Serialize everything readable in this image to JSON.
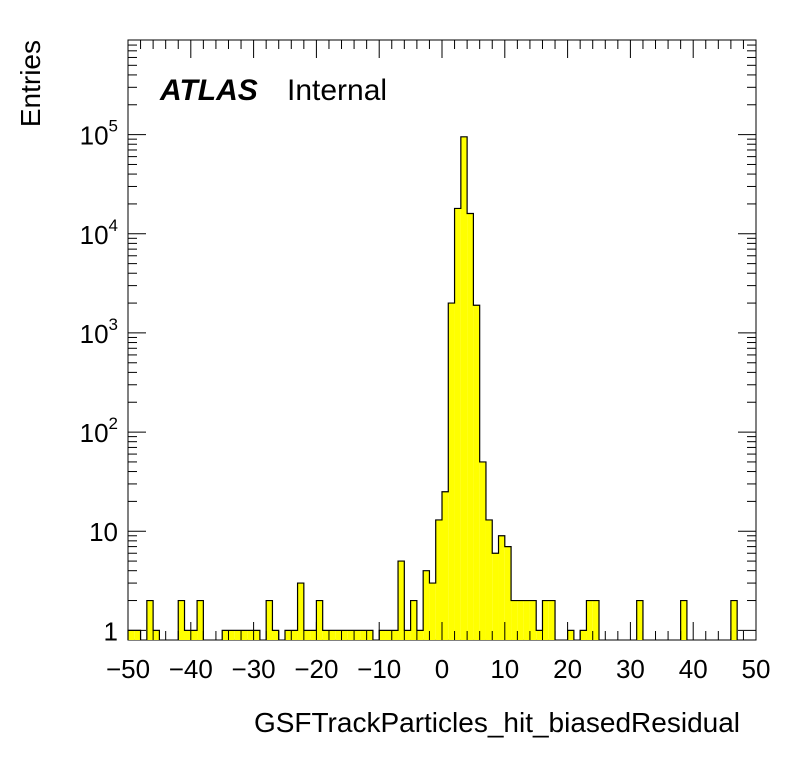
{
  "chart_data": {
    "type": "bar",
    "histogram": true,
    "title": "",
    "label": {
      "experiment": "ATLAS",
      "status": "Internal"
    },
    "xlabel": "GSFTrackParticles_hit_biasedResidual",
    "ylabel": "Entries",
    "xlim": [
      -50,
      50
    ],
    "ylim": [
      0.8,
      900000
    ],
    "yscale": "log",
    "bin_width": 1,
    "fill_color": "#ffff00",
    "line_color": "#000000",
    "x_tick_labels": [
      "−50",
      "−40",
      "−30",
      "−20",
      "−10",
      "0",
      "10",
      "20",
      "30",
      "40",
      "50"
    ],
    "x_ticks": [
      -50,
      -40,
      -30,
      -20,
      -10,
      0,
      10,
      20,
      30,
      40,
      50
    ],
    "y_ticks": [
      {
        "value": 1,
        "base": "1",
        "exp": ""
      },
      {
        "value": 10,
        "base": "10",
        "exp": ""
      },
      {
        "value": 100,
        "base": "10",
        "exp": "2"
      },
      {
        "value": 1000,
        "base": "10",
        "exp": "3"
      },
      {
        "value": 10000,
        "base": "10",
        "exp": "4"
      },
      {
        "value": 100000,
        "base": "10",
        "exp": "5"
      }
    ],
    "bins": [
      {
        "x": -50,
        "y": 1
      },
      {
        "x": -49,
        "y": 1
      },
      {
        "x": -47,
        "y": 2
      },
      {
        "x": -46,
        "y": 1
      },
      {
        "x": -42,
        "y": 2
      },
      {
        "x": -41,
        "y": 1
      },
      {
        "x": -40,
        "y": 1
      },
      {
        "x": -39,
        "y": 2
      },
      {
        "x": -35,
        "y": 1
      },
      {
        "x": -34,
        "y": 1
      },
      {
        "x": -33,
        "y": 1
      },
      {
        "x": -32,
        "y": 1
      },
      {
        "x": -31,
        "y": 1
      },
      {
        "x": -30,
        "y": 1
      },
      {
        "x": -28,
        "y": 2
      },
      {
        "x": -27,
        "y": 1
      },
      {
        "x": -25,
        "y": 1
      },
      {
        "x": -24,
        "y": 1
      },
      {
        "x": -23,
        "y": 3
      },
      {
        "x": -22,
        "y": 1
      },
      {
        "x": -21,
        "y": 1
      },
      {
        "x": -20,
        "y": 2
      },
      {
        "x": -19,
        "y": 1
      },
      {
        "x": -18,
        "y": 1
      },
      {
        "x": -17,
        "y": 1
      },
      {
        "x": -16,
        "y": 1
      },
      {
        "x": -15,
        "y": 1
      },
      {
        "x": -14,
        "y": 1
      },
      {
        "x": -13,
        "y": 1
      },
      {
        "x": -12,
        "y": 1
      },
      {
        "x": -10,
        "y": 1
      },
      {
        "x": -9,
        "y": 1
      },
      {
        "x": -8,
        "y": 1
      },
      {
        "x": -7,
        "y": 5
      },
      {
        "x": -6,
        "y": 1
      },
      {
        "x": -5,
        "y": 2
      },
      {
        "x": -4,
        "y": 1
      },
      {
        "x": -3,
        "y": 4
      },
      {
        "x": -2,
        "y": 3
      },
      {
        "x": -1,
        "y": 13
      },
      {
        "x": 0,
        "y": 25
      },
      {
        "x": 1,
        "y": 2000
      },
      {
        "x": 2,
        "y": 18000
      },
      {
        "x": 3,
        "y": 95000
      },
      {
        "x": 4,
        "y": 16000
      },
      {
        "x": 5,
        "y": 1900
      },
      {
        "x": 6,
        "y": 50
      },
      {
        "x": 7,
        "y": 13
      },
      {
        "x": 8,
        "y": 6
      },
      {
        "x": 9,
        "y": 9
      },
      {
        "x": 10,
        "y": 7
      },
      {
        "x": 11,
        "y": 2
      },
      {
        "x": 12,
        "y": 2
      },
      {
        "x": 13,
        "y": 2
      },
      {
        "x": 14,
        "y": 2
      },
      {
        "x": 15,
        "y": 1
      },
      {
        "x": 16,
        "y": 2
      },
      {
        "x": 17,
        "y": 2
      },
      {
        "x": 20,
        "y": 1
      },
      {
        "x": 22,
        "y": 1
      },
      {
        "x": 23,
        "y": 2
      },
      {
        "x": 24,
        "y": 2
      },
      {
        "x": 31,
        "y": 2
      },
      {
        "x": 38,
        "y": 2
      },
      {
        "x": 46,
        "y": 2
      }
    ]
  }
}
